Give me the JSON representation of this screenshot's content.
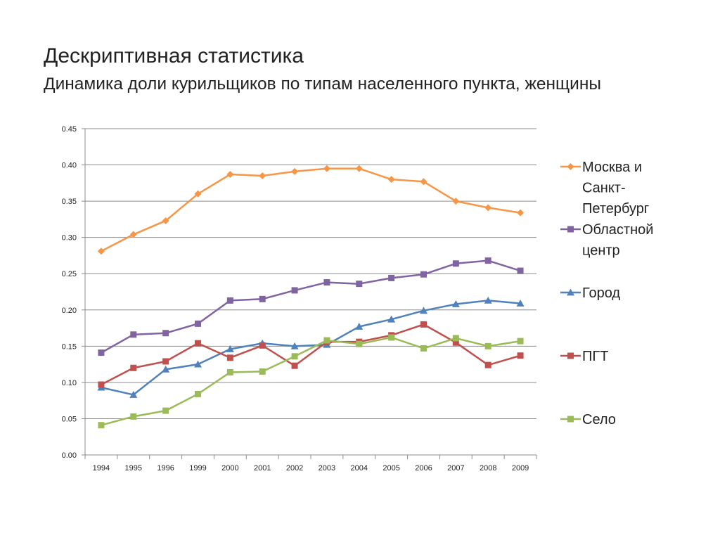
{
  "title": "Дескриптивная статистика",
  "subtitle": "Динамика доли курильщиков по типам населенного пункта, женщины",
  "chart_data": {
    "type": "line",
    "title": "",
    "xlabel": "",
    "ylabel": "",
    "categories": [
      "1994",
      "1995",
      "1996",
      "1999",
      "2000",
      "2001",
      "2002",
      "2003",
      "2004",
      "2005",
      "2006",
      "2007",
      "2008",
      "2009"
    ],
    "ylim": [
      0,
      0.45
    ],
    "yticks": [
      "0.00",
      "0.05",
      "0.10",
      "0.15",
      "0.20",
      "0.25",
      "0.30",
      "0.35",
      "0.40",
      "0.45"
    ],
    "grid": true,
    "legend_position": "right",
    "series": [
      {
        "name": "Москва и Санкт-Петербург",
        "legend_lines": [
          "Москва и",
          "Санкт-",
          "Петербург"
        ],
        "color": "#F79646",
        "marker": "diamond",
        "values": [
          0.281,
          0.304,
          0.323,
          0.36,
          0.387,
          0.385,
          0.391,
          0.395,
          0.395,
          0.38,
          0.377,
          0.35,
          0.341,
          0.334
        ]
      },
      {
        "name": "Областной центр",
        "legend_lines": [
          "Областной",
          "центр"
        ],
        "color": "#8064A2",
        "marker": "square",
        "values": [
          0.141,
          0.166,
          0.168,
          0.181,
          0.213,
          0.215,
          0.227,
          0.238,
          0.236,
          0.244,
          0.249,
          0.264,
          0.268,
          0.254
        ]
      },
      {
        "name": "Город",
        "legend_lines": [
          "Город"
        ],
        "color": "#4F81BD",
        "marker": "triangle",
        "values": [
          0.093,
          0.083,
          0.118,
          0.125,
          0.146,
          0.154,
          0.15,
          0.152,
          0.177,
          0.187,
          0.199,
          0.208,
          0.213,
          0.209
        ]
      },
      {
        "name": "ПГТ",
        "legend_lines": [
          "ПГТ"
        ],
        "color": "#C0504D",
        "marker": "square",
        "values": [
          0.097,
          0.12,
          0.129,
          0.154,
          0.134,
          0.151,
          0.123,
          0.156,
          0.156,
          0.165,
          0.18,
          0.155,
          0.124,
          0.137
        ]
      },
      {
        "name": "Село",
        "legend_lines": [
          "Село"
        ],
        "color": "#9BBB59",
        "marker": "square",
        "values": [
          0.041,
          0.053,
          0.061,
          0.084,
          0.114,
          0.115,
          0.136,
          0.158,
          0.153,
          0.162,
          0.147,
          0.161,
          0.15,
          0.157
        ]
      }
    ]
  }
}
